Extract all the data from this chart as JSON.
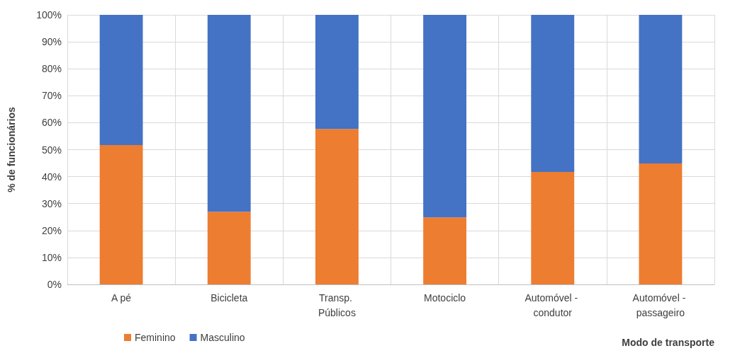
{
  "chart_data": {
    "type": "bar",
    "stacked": true,
    "xlabel": "Modo de transporte",
    "ylabel": "% de funcionários",
    "categories": [
      "A pé",
      "Bicicleta",
      "Transp. Públicos",
      "Motociclo",
      "Automóvel - condutor",
      "Automóvel - passageiro"
    ],
    "series": [
      {
        "name": "Feminino",
        "color": "#ed7d31",
        "values": [
          51.7,
          27.0,
          57.7,
          24.9,
          41.7,
          44.9
        ]
      },
      {
        "name": "Masculino",
        "color": "#4472c4",
        "values": [
          48.3,
          73.0,
          42.3,
          75.1,
          58.3,
          55.1
        ]
      }
    ],
    "ylim": [
      0,
      100
    ],
    "yticks": [
      {
        "value": 0,
        "label": "0%"
      },
      {
        "value": 10,
        "label": "10%"
      },
      {
        "value": 20,
        "label": "20%"
      },
      {
        "value": 30,
        "label": "30%"
      },
      {
        "value": 40,
        "label": "40%"
      },
      {
        "value": 50,
        "label": "50%"
      },
      {
        "value": 60,
        "label": "60%"
      },
      {
        "value": 70,
        "label": "70%"
      },
      {
        "value": 80,
        "label": "80%"
      },
      {
        "value": 90,
        "label": "90%"
      },
      {
        "value": 100,
        "label": "100%"
      }
    ],
    "grid": true,
    "legend": "bottom left"
  }
}
